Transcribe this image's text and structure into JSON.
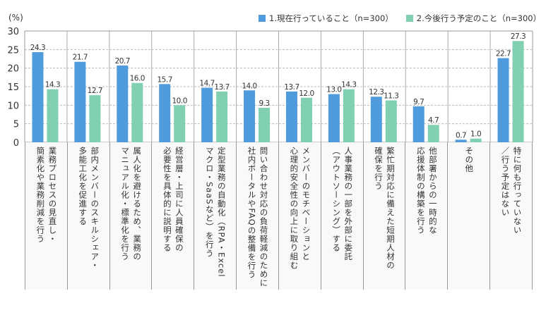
{
  "chart_data": {
    "type": "bar",
    "ylabel": "(%)",
    "ylim": [
      0,
      30
    ],
    "yticks": [
      "0",
      "5",
      "10",
      "15",
      "20",
      "25",
      "30"
    ],
    "grid": true,
    "legend_position": "top-right",
    "colors": {
      "series1": "#4f9bdc",
      "series2": "#80d0b1"
    },
    "categories": [
      [
        "業務プロセスの見直し・",
        "簡素化や業務削減を行う"
      ],
      [
        "部内メンバーのスキルシェア・",
        "多能工化を促進する"
      ],
      [
        "属人化を避けるため、業務の",
        "マニュアル化・標準化を行う"
      ],
      [
        "経営層・上司に人員確保の",
        "必要性を具体的に説明する"
      ],
      [
        "定型業務の自動化（RPA・Excel",
        "マクロ・SaaSなど）を行う"
      ],
      [
        "問い合わせ対応の負荷軽減のために",
        "社内ポータルやFAQの整備を行う"
      ],
      [
        "メンバーのモチベーションと",
        "心理的安全性の向上に取り組む"
      ],
      [
        "人事業務の一部を外部に委託",
        "（アウトソーシング）する"
      ],
      [
        "繁忙期対応に備えた短期人材の",
        "確保を行う"
      ],
      [
        "他部署からの一時的な",
        "応援体制の構築を行う"
      ],
      [
        "その他"
      ],
      [
        "特に何も行っていない",
        "／行う予定はない"
      ]
    ],
    "series": [
      {
        "name": "1.現在行っていること（n=300）",
        "values": [
          24.3,
          21.7,
          20.7,
          15.7,
          14.7,
          14.0,
          13.7,
          13.0,
          12.3,
          9.7,
          0.7,
          22.7
        ],
        "labels": [
          "24.3",
          "21.7",
          "20.7",
          "15.7",
          "14.7",
          "14.0",
          "13.7",
          "13.0",
          "12.3",
          "9.7",
          "0.7",
          "22.7"
        ]
      },
      {
        "name": "2.今後行う予定のこと（n=300）",
        "values": [
          14.3,
          12.7,
          16.0,
          10.0,
          13.7,
          9.3,
          12.0,
          14.3,
          11.3,
          4.7,
          1.0,
          27.3
        ],
        "labels": [
          "14.3",
          "12.7",
          "16.0",
          "10.0",
          "13.7",
          "9.3",
          "12.0",
          "14.3",
          "11.3",
          "4.7",
          "1.0",
          "27.3"
        ]
      }
    ]
  }
}
